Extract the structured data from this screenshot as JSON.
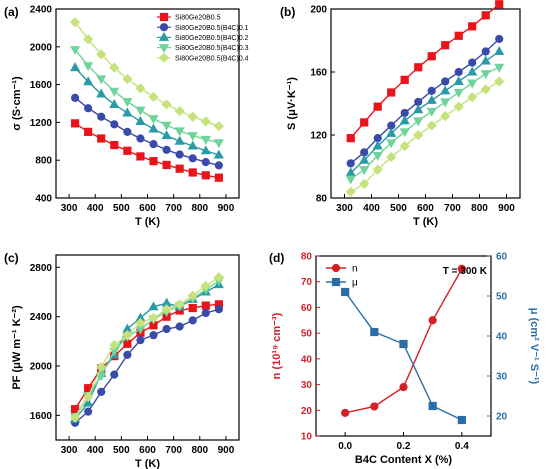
{
  "chart_data": [
    {
      "panel": "(a)",
      "type": "line",
      "xlabel": "T (K)",
      "ylabel": "σ (S·cm⁻¹)",
      "xlim": [
        250,
        950
      ],
      "ylim": [
        400,
        2400
      ],
      "xticks": [
        300,
        400,
        500,
        600,
        700,
        800,
        900
      ],
      "yticks": [
        400,
        800,
        1200,
        1600,
        2000,
        2400
      ],
      "legend_position": "top-right",
      "x": [
        323,
        373,
        423,
        473,
        523,
        573,
        623,
        673,
        723,
        773,
        823,
        873
      ],
      "series": [
        {
          "name": "Si80Ge20B0.5",
          "color": "#e8141b",
          "marker": "square",
          "values": [
            1190,
            1100,
            1030,
            960,
            900,
            840,
            790,
            750,
            710,
            670,
            640,
            615
          ]
        },
        {
          "name": "Si80Ge20B0.5(B4C)0.1",
          "color": "#3a4aa8",
          "marker": "circle",
          "values": [
            1460,
            1350,
            1260,
            1180,
            1100,
            1030,
            970,
            910,
            860,
            820,
            780,
            745
          ]
        },
        {
          "name": "Si80Ge20B0.5(B4C)0.2",
          "color": "#2a9aa8",
          "marker": "triangle-up",
          "values": [
            1780,
            1630,
            1500,
            1390,
            1300,
            1210,
            1130,
            1060,
            1000,
            950,
            900,
            855
          ]
        },
        {
          "name": "Si80Ge20B0.5(B4C)0.3",
          "color": "#6fd39a",
          "marker": "triangle-down",
          "values": [
            1970,
            1800,
            1660,
            1530,
            1420,
            1330,
            1240,
            1170,
            1110,
            1060,
            1020,
            985
          ]
        },
        {
          "name": "Si80Ge20B0.5(B4C)0.4",
          "color": "#c6e27c",
          "marker": "diamond",
          "values": [
            2260,
            2080,
            1920,
            1780,
            1660,
            1560,
            1470,
            1390,
            1320,
            1260,
            1210,
            1160
          ]
        }
      ]
    },
    {
      "panel": "(b)",
      "type": "line",
      "xlabel": "T (K)",
      "ylabel": "S (μV·K⁻¹)",
      "xlim": [
        250,
        950
      ],
      "ylim": [
        80,
        200
      ],
      "xticks": [
        300,
        400,
        500,
        600,
        700,
        800,
        900
      ],
      "yticks": [
        80,
        120,
        160,
        200
      ],
      "x": [
        323,
        373,
        423,
        473,
        523,
        573,
        623,
        673,
        723,
        773,
        823,
        873
      ],
      "series": [
        {
          "name": "Si80Ge20B0.5",
          "color": "#e8141b",
          "marker": "square",
          "values": [
            118,
            128,
            138,
            147,
            155,
            163,
            170,
            177,
            183,
            189,
            196,
            203
          ]
        },
        {
          "name": "Si80Ge20B0.5(B4C)0.1",
          "color": "#3a4aa8",
          "marker": "circle",
          "values": [
            102,
            109,
            118,
            126,
            134,
            141,
            148,
            154,
            160,
            166,
            173,
            181
          ]
        },
        {
          "name": "Si80Ge20B0.5(B4C)0.2",
          "color": "#2a9aa8",
          "marker": "triangle-up",
          "values": [
            96,
            104,
            113,
            121,
            129,
            136,
            142,
            148,
            154,
            160,
            167,
            173
          ]
        },
        {
          "name": "Si80Ge20B0.5(B4C)0.3",
          "color": "#6fd39a",
          "marker": "triangle-down",
          "values": [
            92,
            98,
            107,
            115,
            122,
            129,
            135,
            141,
            147,
            153,
            159,
            163
          ]
        },
        {
          "name": "Si80Ge20B0.5(B4C)0.4",
          "color": "#c6e27c",
          "marker": "diamond",
          "values": [
            84,
            89,
            98,
            106,
            113,
            120,
            126,
            132,
            138,
            144,
            149,
            154
          ]
        }
      ]
    },
    {
      "panel": "(c)",
      "type": "line",
      "xlabel": "T (K)",
      "ylabel": "PF (μW m⁻¹ K⁻²)",
      "xlim": [
        250,
        950
      ],
      "ylim": [
        1400,
        2900
      ],
      "xticks": [
        300,
        400,
        500,
        600,
        700,
        800,
        900
      ],
      "yticks": [
        1600,
        2000,
        2400,
        2800
      ],
      "x": [
        323,
        373,
        423,
        473,
        523,
        573,
        623,
        673,
        723,
        773,
        823,
        873
      ],
      "series": [
        {
          "name": "Si80Ge20B0.5",
          "color": "#e8141b",
          "marker": "square",
          "values": [
            1650,
            1820,
            1980,
            2080,
            2180,
            2270,
            2330,
            2400,
            2450,
            2470,
            2490,
            2500
          ]
        },
        {
          "name": "Si80Ge20B0.5(B4C)0.1",
          "color": "#3a4aa8",
          "marker": "circle",
          "values": [
            1540,
            1630,
            1790,
            1930,
            2090,
            2210,
            2250,
            2300,
            2320,
            2370,
            2430,
            2460
          ]
        },
        {
          "name": "Si80Ge20B0.5(B4C)0.2",
          "color": "#2a9aa8",
          "marker": "triangle-up",
          "values": [
            1570,
            1700,
            1940,
            2090,
            2300,
            2390,
            2480,
            2510,
            2480,
            2540,
            2600,
            2660
          ]
        },
        {
          "name": "Si80Ge20B0.5(B4C)0.3",
          "color": "#6fd39a",
          "marker": "triangle-down",
          "values": [
            1590,
            1760,
            1920,
            2120,
            2240,
            2300,
            2380,
            2440,
            2490,
            2550,
            2620,
            2690
          ]
        },
        {
          "name": "Si80Ge20B0.5(B4C)0.4",
          "color": "#c6e27c",
          "marker": "diamond",
          "values": [
            1580,
            1750,
            1990,
            2170,
            2250,
            2350,
            2390,
            2460,
            2500,
            2570,
            2650,
            2720
          ]
        }
      ]
    },
    {
      "panel": "(d)",
      "type": "line",
      "xlabel": "B4C Content X (%)",
      "ylabel": "n (10¹⁹ cm⁻³)",
      "ylabel_right": "μ (cm² V⁻¹ S⁻¹)",
      "annotation": "T = 300 K",
      "xlim": [
        -0.1,
        0.5
      ],
      "ylim": [
        10,
        80
      ],
      "ylim_right": [
        15,
        60
      ],
      "xticks": [
        0.0,
        0.2,
        0.4
      ],
      "xtick_labels": [
        "0.0",
        "0.2",
        "0.4"
      ],
      "yticks": [
        10,
        20,
        30,
        40,
        50,
        60,
        70,
        80
      ],
      "yticks_right": [
        20,
        30,
        40,
        50,
        60
      ],
      "legend_position": "top-left",
      "x": [
        0.0,
        0.1,
        0.2,
        0.3,
        0.4
      ],
      "series": [
        {
          "name": "n",
          "color": "#d61f26",
          "marker": "circle",
          "axis": "left",
          "values": [
            19,
            21.5,
            29,
            55,
            75
          ]
        },
        {
          "name": "μ",
          "color": "#2b6ea7",
          "marker": "square",
          "axis": "right",
          "values": [
            51,
            41,
            38,
            22.5,
            19
          ]
        }
      ]
    }
  ]
}
